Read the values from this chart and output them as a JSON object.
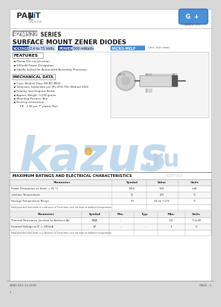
{
  "title_series": "BZM5221B SERIES",
  "subtitle": "SURFACE MOUNT ZENER DIODES",
  "voltage_label": "VOLTAGE",
  "voltage_value": "2.4 to 75 Volts",
  "power_label": "POWER",
  "power_value": "500 mWatts",
  "package_label": "MICRO-MELF",
  "package_unit": "Unit: inch (mm)",
  "features_title": "FEATURES",
  "features": [
    "Planar Die construction",
    "500mW Power Dissipation",
    "Ideally Suited for Automated Assembly Processes"
  ],
  "mech_title": "MECHANICAL DATA",
  "mech_data": [
    "Case: Molded Glass MICRO-MELF",
    "Terminals: Solderable per MIL-STD-750, Method 2026",
    "Polarity: See Diagram Below",
    "Approx. Weight: 0.009 grams",
    "Mounting Position: Any",
    "Packing information:",
    "T/R - 2.5K per 7\" plastic Reel"
  ],
  "max_ratings_title": "MAXIMUM RATINGS AND ELECTRICAL CHARACTERISTICS",
  "table1_headers": [
    "Parameter",
    "Symbol",
    "Value",
    "Units"
  ],
  "table1_rows": [
    [
      "Power Dissipation at Tamb = 25 °C",
      "PDIS",
      "500",
      "mW"
    ],
    [
      "Junction Temperature",
      "TJ",
      "175",
      "°C"
    ],
    [
      "Storage Temperature Range",
      "TS",
      "-65 to +175",
      "°C"
    ]
  ],
  "table1_note": "Valid provided that leads at a distance of 5mm from case are kept at ambient temperature.",
  "table2_headers": [
    "Parameter",
    "Symbol",
    "Min.",
    "Typ.",
    "Max.",
    "Units"
  ],
  "table2_rows": [
    [
      "Thermal Resistance Junction to Ambient Air",
      "RθJA",
      "-",
      "-",
      "0.5",
      "°C/mW"
    ],
    [
      "Forward Voltage at IF = 200mA",
      "VF",
      "-",
      "-",
      "1",
      "V"
    ]
  ],
  "table2_note": "Valid provided that leads at a distance of 5mm from case are kept at ambient temperature.",
  "footer_left": "SZAD-DEC.22.2006",
  "footer_right": "PAGE : 1",
  "footer_num": "1"
}
